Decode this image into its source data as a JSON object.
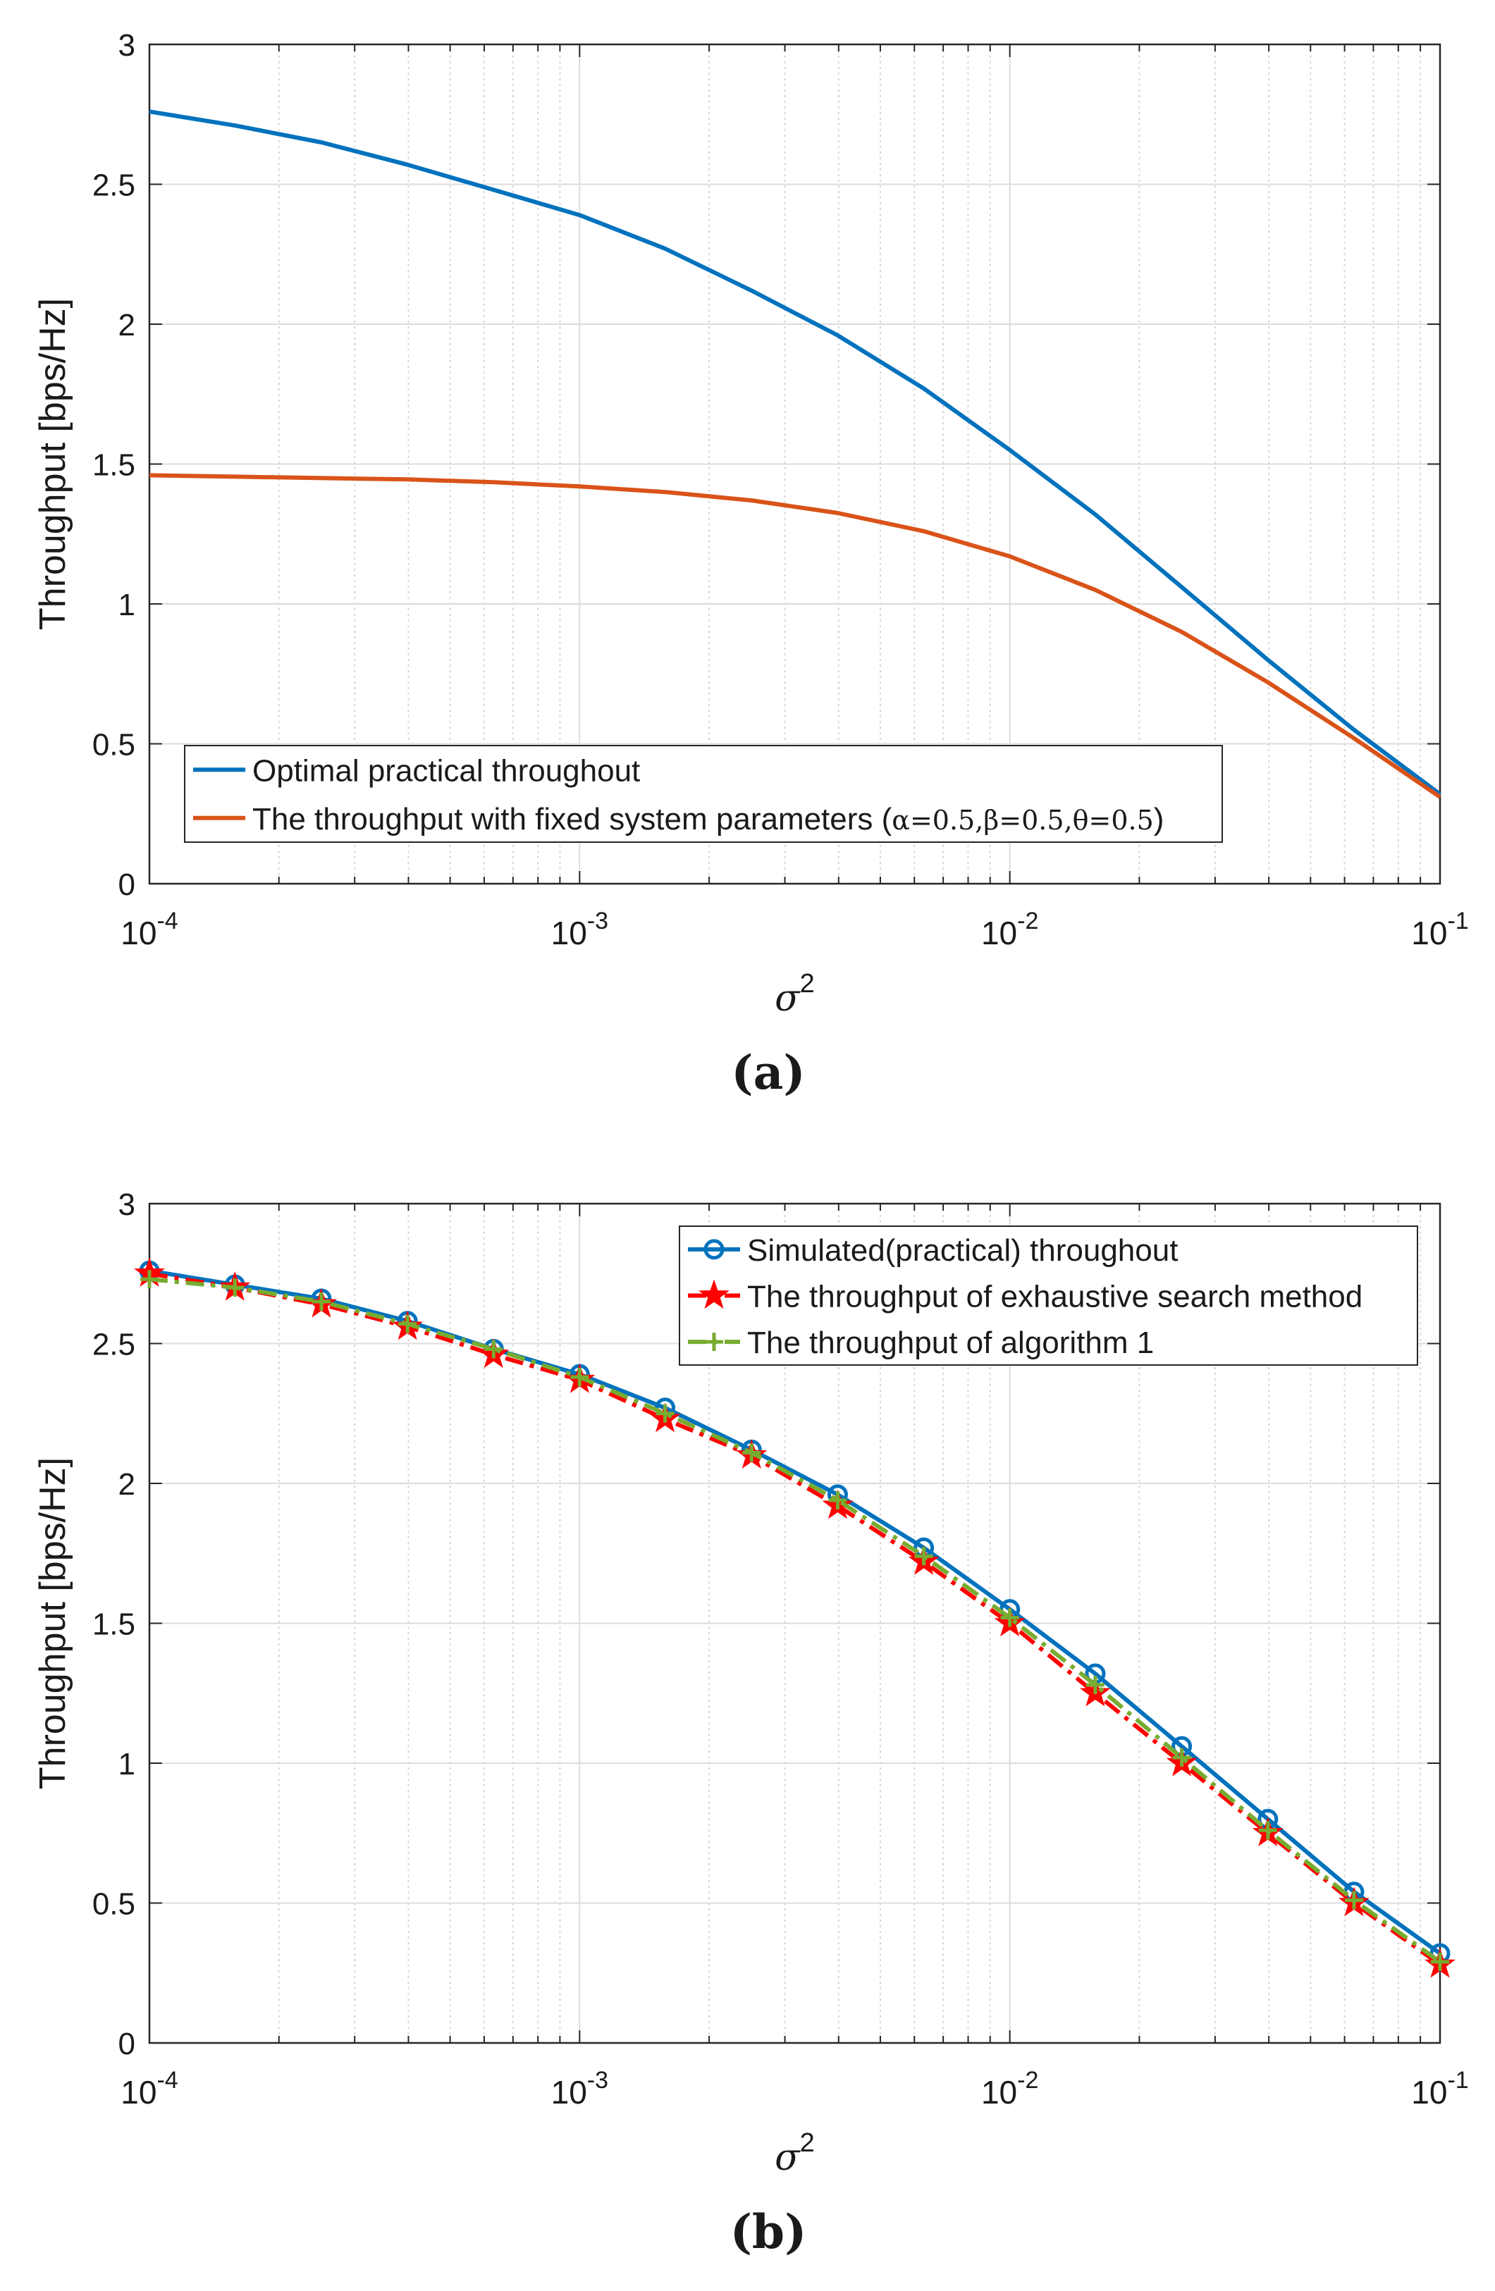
{
  "figure": {
    "panel_a_caption": "(a)",
    "panel_b_caption": "(b)"
  },
  "chart_data": [
    {
      "type": "line",
      "panel": "a",
      "caption": "(a)",
      "xscale": "log",
      "xlim": [
        0.0001,
        0.1
      ],
      "ylim": [
        0,
        3
      ],
      "xlabel": "σ",
      "xlabel_superscript": "2",
      "ylabel": "Throughput [bps/Hz]",
      "grid": true,
      "legend_position": "bottom-left",
      "x_ticks": [
        {
          "value": 0.0001,
          "base": "10",
          "exp": "-4"
        },
        {
          "value": 0.001,
          "base": "10",
          "exp": "-3"
        },
        {
          "value": 0.01,
          "base": "10",
          "exp": "-2"
        },
        {
          "value": 0.1,
          "base": "10",
          "exp": "-1"
        }
      ],
      "y_ticks": [
        {
          "value": 0,
          "label": "0"
        },
        {
          "value": 0.5,
          "label": "0.5"
        },
        {
          "value": 1,
          "label": "1"
        },
        {
          "value": 1.5,
          "label": "1.5"
        },
        {
          "value": 2,
          "label": "2"
        },
        {
          "value": 2.5,
          "label": "2.5"
        },
        {
          "value": 3,
          "label": "3"
        }
      ],
      "x": [
        0.0001,
        0.000158,
        0.000251,
        0.000398,
        0.000631,
        0.001,
        0.00158,
        0.00251,
        0.00398,
        0.00631,
        0.01,
        0.0158,
        0.0251,
        0.0398,
        0.0631,
        0.1
      ],
      "series": [
        {
          "name": "Optimal practical throughout",
          "color": "#0072bd",
          "marker": "none",
          "values": [
            2.76,
            2.71,
            2.65,
            2.57,
            2.48,
            2.39,
            2.27,
            2.12,
            1.96,
            1.77,
            1.55,
            1.32,
            1.06,
            0.8,
            0.55,
            0.32
          ]
        },
        {
          "name": "The throughput with fixed system parameters (",
          "name_math": "α=0.5,β=0.5,θ=0.5",
          "name_tail": ")",
          "color": "#d95319",
          "marker": "none",
          "values": [
            1.46,
            1.455,
            1.45,
            1.445,
            1.435,
            1.42,
            1.4,
            1.37,
            1.325,
            1.26,
            1.17,
            1.05,
            0.9,
            0.72,
            0.52,
            0.31
          ]
        }
      ]
    },
    {
      "type": "line",
      "panel": "b",
      "caption": "(b)",
      "xscale": "log",
      "xlim": [
        0.0001,
        0.1
      ],
      "ylim": [
        0,
        3
      ],
      "xlabel": "σ",
      "xlabel_superscript": "2",
      "ylabel": "Throughput [bps/Hz]",
      "grid": true,
      "legend_position": "top-right",
      "x_ticks": [
        {
          "value": 0.0001,
          "base": "10",
          "exp": "-4"
        },
        {
          "value": 0.001,
          "base": "10",
          "exp": "-3"
        },
        {
          "value": 0.01,
          "base": "10",
          "exp": "-2"
        },
        {
          "value": 0.1,
          "base": "10",
          "exp": "-1"
        }
      ],
      "y_ticks": [
        {
          "value": 0,
          "label": "0"
        },
        {
          "value": 0.5,
          "label": "0.5"
        },
        {
          "value": 1,
          "label": "1"
        },
        {
          "value": 1.5,
          "label": "1.5"
        },
        {
          "value": 2,
          "label": "2"
        },
        {
          "value": 2.5,
          "label": "2.5"
        },
        {
          "value": 3,
          "label": "3"
        }
      ],
      "x": [
        0.0001,
        0.000158,
        0.000251,
        0.000398,
        0.000631,
        0.001,
        0.00158,
        0.00251,
        0.00398,
        0.00631,
        0.01,
        0.0158,
        0.0251,
        0.0398,
        0.0631,
        0.1
      ],
      "series": [
        {
          "name": "Simulated(practical) throughout",
          "color": "#0072bd",
          "marker": "circle",
          "dash": "solid",
          "values": [
            2.76,
            2.71,
            2.66,
            2.58,
            2.48,
            2.39,
            2.27,
            2.12,
            1.96,
            1.77,
            1.55,
            1.32,
            1.06,
            0.8,
            0.54,
            0.32
          ]
        },
        {
          "name": "The throughput of exhaustive search method",
          "color": "#ff0000",
          "marker": "star",
          "dash": "dashdot",
          "values": [
            2.75,
            2.7,
            2.64,
            2.56,
            2.46,
            2.37,
            2.23,
            2.1,
            1.92,
            1.72,
            1.5,
            1.25,
            1.0,
            0.75,
            0.5,
            0.28
          ]
        },
        {
          "name": "The throughput of algorithm 1",
          "color": "#77ac30",
          "marker": "plus",
          "dash": "dashdot",
          "values": [
            2.73,
            2.7,
            2.65,
            2.57,
            2.48,
            2.38,
            2.25,
            2.11,
            1.94,
            1.74,
            1.52,
            1.28,
            1.02,
            0.76,
            0.51,
            0.29
          ]
        }
      ]
    }
  ]
}
